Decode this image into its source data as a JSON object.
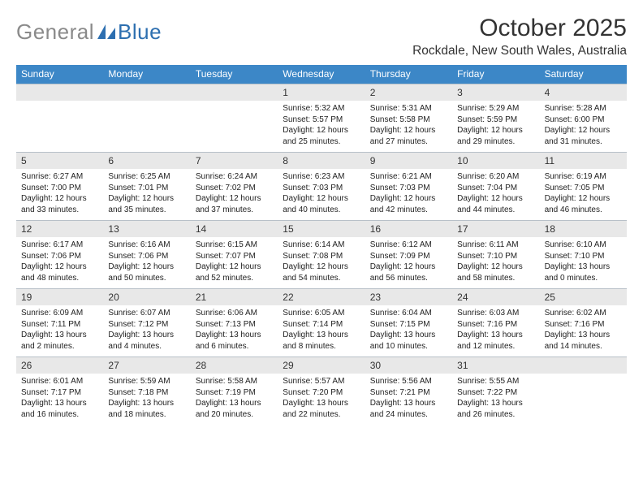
{
  "logo": {
    "text1": "General",
    "text2": "Blue"
  },
  "title": "October 2025",
  "location": "Rockdale, New South Wales, Australia",
  "colors": {
    "header_blue": "#3c87c7",
    "band_grey": "#e8e8e8",
    "logo_grey": "#8a8a8a",
    "logo_blue": "#2d6fb0",
    "divider": "#b8c0c8",
    "background": "#ffffff"
  },
  "weekdays": [
    "Sunday",
    "Monday",
    "Tuesday",
    "Wednesday",
    "Thursday",
    "Friday",
    "Saturday"
  ],
  "weeks": [
    {
      "dates": [
        "",
        "",
        "",
        "1",
        "2",
        "3",
        "4"
      ],
      "cells": [
        null,
        null,
        null,
        {
          "sunrise": "Sunrise: 5:32 AM",
          "sunset": "Sunset: 5:57 PM",
          "daylight": "Daylight: 12 hours and 25 minutes."
        },
        {
          "sunrise": "Sunrise: 5:31 AM",
          "sunset": "Sunset: 5:58 PM",
          "daylight": "Daylight: 12 hours and 27 minutes."
        },
        {
          "sunrise": "Sunrise: 5:29 AM",
          "sunset": "Sunset: 5:59 PM",
          "daylight": "Daylight: 12 hours and 29 minutes."
        },
        {
          "sunrise": "Sunrise: 5:28 AM",
          "sunset": "Sunset: 6:00 PM",
          "daylight": "Daylight: 12 hours and 31 minutes."
        }
      ]
    },
    {
      "dates": [
        "5",
        "6",
        "7",
        "8",
        "9",
        "10",
        "11"
      ],
      "cells": [
        {
          "sunrise": "Sunrise: 6:27 AM",
          "sunset": "Sunset: 7:00 PM",
          "daylight": "Daylight: 12 hours and 33 minutes."
        },
        {
          "sunrise": "Sunrise: 6:25 AM",
          "sunset": "Sunset: 7:01 PM",
          "daylight": "Daylight: 12 hours and 35 minutes."
        },
        {
          "sunrise": "Sunrise: 6:24 AM",
          "sunset": "Sunset: 7:02 PM",
          "daylight": "Daylight: 12 hours and 37 minutes."
        },
        {
          "sunrise": "Sunrise: 6:23 AM",
          "sunset": "Sunset: 7:03 PM",
          "daylight": "Daylight: 12 hours and 40 minutes."
        },
        {
          "sunrise": "Sunrise: 6:21 AM",
          "sunset": "Sunset: 7:03 PM",
          "daylight": "Daylight: 12 hours and 42 minutes."
        },
        {
          "sunrise": "Sunrise: 6:20 AM",
          "sunset": "Sunset: 7:04 PM",
          "daylight": "Daylight: 12 hours and 44 minutes."
        },
        {
          "sunrise": "Sunrise: 6:19 AM",
          "sunset": "Sunset: 7:05 PM",
          "daylight": "Daylight: 12 hours and 46 minutes."
        }
      ]
    },
    {
      "dates": [
        "12",
        "13",
        "14",
        "15",
        "16",
        "17",
        "18"
      ],
      "cells": [
        {
          "sunrise": "Sunrise: 6:17 AM",
          "sunset": "Sunset: 7:06 PM",
          "daylight": "Daylight: 12 hours and 48 minutes."
        },
        {
          "sunrise": "Sunrise: 6:16 AM",
          "sunset": "Sunset: 7:06 PM",
          "daylight": "Daylight: 12 hours and 50 minutes."
        },
        {
          "sunrise": "Sunrise: 6:15 AM",
          "sunset": "Sunset: 7:07 PM",
          "daylight": "Daylight: 12 hours and 52 minutes."
        },
        {
          "sunrise": "Sunrise: 6:14 AM",
          "sunset": "Sunset: 7:08 PM",
          "daylight": "Daylight: 12 hours and 54 minutes."
        },
        {
          "sunrise": "Sunrise: 6:12 AM",
          "sunset": "Sunset: 7:09 PM",
          "daylight": "Daylight: 12 hours and 56 minutes."
        },
        {
          "sunrise": "Sunrise: 6:11 AM",
          "sunset": "Sunset: 7:10 PM",
          "daylight": "Daylight: 12 hours and 58 minutes."
        },
        {
          "sunrise": "Sunrise: 6:10 AM",
          "sunset": "Sunset: 7:10 PM",
          "daylight": "Daylight: 13 hours and 0 minutes."
        }
      ]
    },
    {
      "dates": [
        "19",
        "20",
        "21",
        "22",
        "23",
        "24",
        "25"
      ],
      "cells": [
        {
          "sunrise": "Sunrise: 6:09 AM",
          "sunset": "Sunset: 7:11 PM",
          "daylight": "Daylight: 13 hours and 2 minutes."
        },
        {
          "sunrise": "Sunrise: 6:07 AM",
          "sunset": "Sunset: 7:12 PM",
          "daylight": "Daylight: 13 hours and 4 minutes."
        },
        {
          "sunrise": "Sunrise: 6:06 AM",
          "sunset": "Sunset: 7:13 PM",
          "daylight": "Daylight: 13 hours and 6 minutes."
        },
        {
          "sunrise": "Sunrise: 6:05 AM",
          "sunset": "Sunset: 7:14 PM",
          "daylight": "Daylight: 13 hours and 8 minutes."
        },
        {
          "sunrise": "Sunrise: 6:04 AM",
          "sunset": "Sunset: 7:15 PM",
          "daylight": "Daylight: 13 hours and 10 minutes."
        },
        {
          "sunrise": "Sunrise: 6:03 AM",
          "sunset": "Sunset: 7:16 PM",
          "daylight": "Daylight: 13 hours and 12 minutes."
        },
        {
          "sunrise": "Sunrise: 6:02 AM",
          "sunset": "Sunset: 7:16 PM",
          "daylight": "Daylight: 13 hours and 14 minutes."
        }
      ]
    },
    {
      "dates": [
        "26",
        "27",
        "28",
        "29",
        "30",
        "31",
        ""
      ],
      "cells": [
        {
          "sunrise": "Sunrise: 6:01 AM",
          "sunset": "Sunset: 7:17 PM",
          "daylight": "Daylight: 13 hours and 16 minutes."
        },
        {
          "sunrise": "Sunrise: 5:59 AM",
          "sunset": "Sunset: 7:18 PM",
          "daylight": "Daylight: 13 hours and 18 minutes."
        },
        {
          "sunrise": "Sunrise: 5:58 AM",
          "sunset": "Sunset: 7:19 PM",
          "daylight": "Daylight: 13 hours and 20 minutes."
        },
        {
          "sunrise": "Sunrise: 5:57 AM",
          "sunset": "Sunset: 7:20 PM",
          "daylight": "Daylight: 13 hours and 22 minutes."
        },
        {
          "sunrise": "Sunrise: 5:56 AM",
          "sunset": "Sunset: 7:21 PM",
          "daylight": "Daylight: 13 hours and 24 minutes."
        },
        {
          "sunrise": "Sunrise: 5:55 AM",
          "sunset": "Sunset: 7:22 PM",
          "daylight": "Daylight: 13 hours and 26 minutes."
        },
        null
      ]
    }
  ]
}
